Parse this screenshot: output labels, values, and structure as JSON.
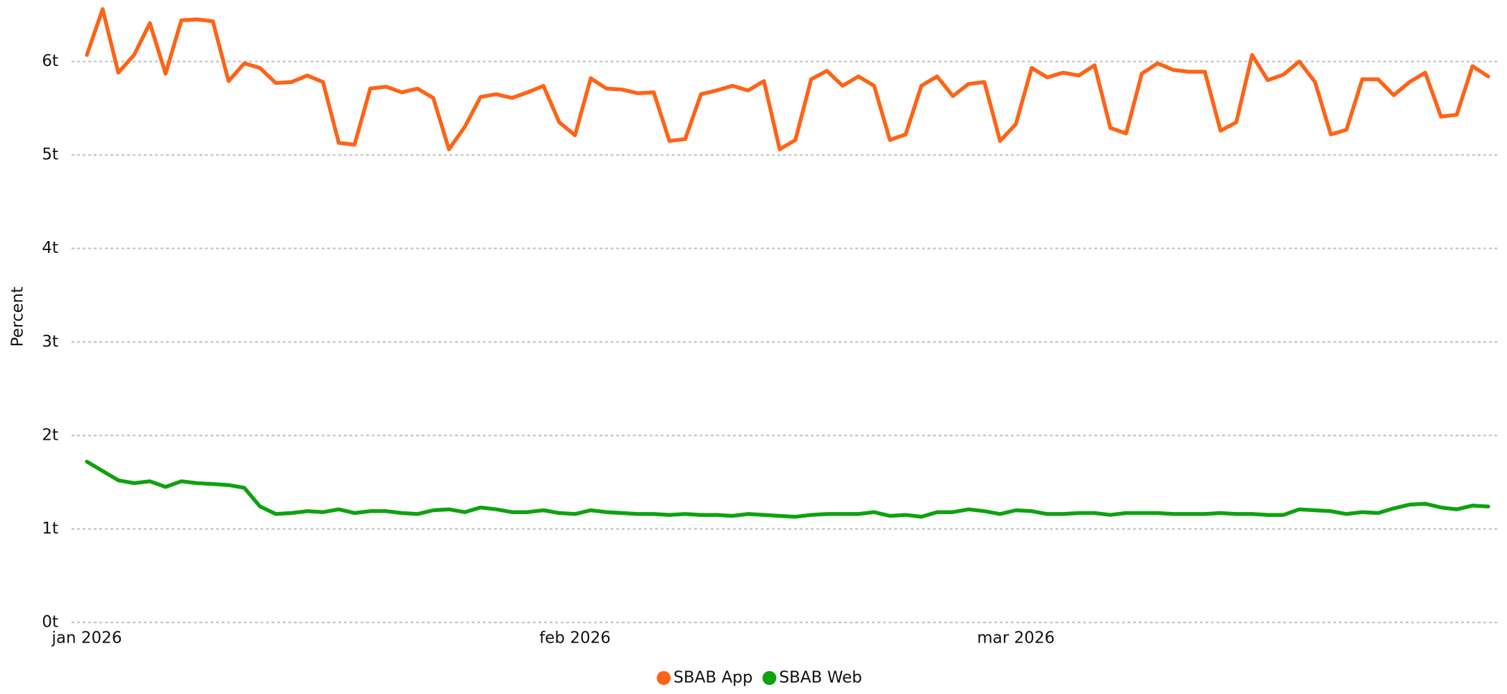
{
  "chart_data": {
    "type": "line",
    "ylabel": "Percent",
    "categories": [
      "jan 2026",
      null,
      null,
      null,
      null,
      null,
      null,
      null,
      null,
      null,
      null,
      null,
      null,
      null,
      null,
      null,
      null,
      null,
      null,
      null,
      null,
      null,
      null,
      null,
      null,
      null,
      null,
      null,
      null,
      null,
      null,
      "feb 2026",
      null,
      null,
      null,
      null,
      null,
      null,
      null,
      null,
      null,
      null,
      null,
      null,
      null,
      null,
      null,
      null,
      null,
      null,
      null,
      null,
      null,
      null,
      null,
      null,
      null,
      null,
      null,
      "mar 2026",
      null,
      null,
      null,
      null,
      null,
      null,
      null,
      null,
      null,
      null,
      null,
      null,
      null,
      null,
      null,
      null,
      null,
      null,
      null,
      null,
      null,
      null,
      null,
      null,
      null,
      null,
      null,
      null,
      null,
      null
    ],
    "series": [
      {
        "name": "SBAB App",
        "color": "#ff6316",
        "values": [
          6.07,
          6.56,
          5.88,
          6.07,
          6.41,
          5.87,
          6.44,
          6.45,
          6.43,
          5.79,
          5.98,
          5.93,
          5.77,
          5.78,
          5.85,
          5.78,
          5.13,
          5.11,
          5.71,
          5.73,
          5.67,
          5.71,
          5.61,
          5.06,
          5.3,
          5.62,
          5.65,
          5.61,
          5.67,
          5.74,
          5.35,
          5.21,
          5.82,
          5.71,
          5.7,
          5.66,
          5.67,
          5.15,
          5.17,
          5.65,
          5.69,
          5.74,
          5.69,
          5.79,
          5.06,
          5.16,
          5.81,
          5.9,
          5.74,
          5.84,
          5.74,
          5.16,
          5.22,
          5.74,
          5.84,
          5.63,
          5.76,
          5.78,
          5.15,
          5.33,
          5.93,
          5.83,
          5.88,
          5.85,
          5.96,
          5.29,
          5.23,
          5.87,
          5.98,
          5.91,
          5.89,
          5.89,
          5.26,
          5.35,
          6.07,
          5.8,
          5.86,
          6.0,
          5.78,
          5.22,
          5.27,
          5.81,
          5.81,
          5.64,
          5.78,
          5.88,
          5.41,
          5.43,
          5.95,
          5.84
        ]
      },
      {
        "name": "SBAB Web",
        "color": "#0fa20f",
        "values": [
          1.72,
          1.62,
          1.52,
          1.49,
          1.51,
          1.45,
          1.51,
          1.49,
          1.48,
          1.47,
          1.44,
          1.24,
          1.16,
          1.17,
          1.19,
          1.18,
          1.21,
          1.17,
          1.19,
          1.19,
          1.17,
          1.16,
          1.2,
          1.21,
          1.18,
          1.23,
          1.21,
          1.18,
          1.18,
          1.2,
          1.17,
          1.16,
          1.2,
          1.18,
          1.17,
          1.16,
          1.16,
          1.15,
          1.16,
          1.15,
          1.15,
          1.14,
          1.16,
          1.15,
          1.14,
          1.13,
          1.15,
          1.16,
          1.16,
          1.16,
          1.18,
          1.14,
          1.15,
          1.13,
          1.18,
          1.18,
          1.21,
          1.19,
          1.16,
          1.2,
          1.19,
          1.16,
          1.16,
          1.17,
          1.17,
          1.15,
          1.17,
          1.17,
          1.17,
          1.16,
          1.16,
          1.16,
          1.17,
          1.16,
          1.16,
          1.15,
          1.15,
          1.21,
          1.2,
          1.19,
          1.16,
          1.18,
          1.17,
          1.22,
          1.26,
          1.27,
          1.23,
          1.21,
          1.25,
          1.24
        ]
      }
    ],
    "ylim": [
      0,
      6
    ],
    "yticks": [
      {
        "value": 0,
        "label": "0t"
      },
      {
        "value": 1,
        "label": "1t"
      },
      {
        "value": 2,
        "label": "2t"
      },
      {
        "value": 3,
        "label": "3t"
      },
      {
        "value": 4,
        "label": "4t"
      },
      {
        "value": 5,
        "label": "5t"
      },
      {
        "value": 6,
        "label": "6t"
      }
    ],
    "grid": true,
    "legend": "bottom"
  }
}
